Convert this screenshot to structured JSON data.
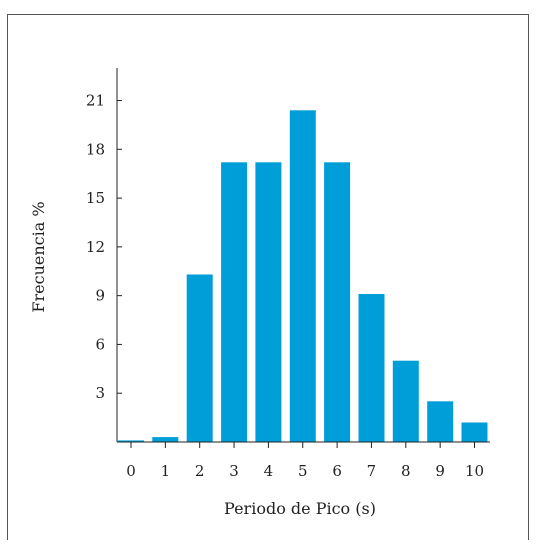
{
  "chart_data": {
    "type": "bar",
    "title": "",
    "xlabel": "Periodo de Pico (s)",
    "ylabel": "Frecuencia %",
    "x": [
      0,
      1,
      2,
      3,
      4,
      5,
      6,
      7,
      8,
      9,
      10
    ],
    "values": [
      0.1,
      0.3,
      10.3,
      17.2,
      17.2,
      20.4,
      17.2,
      9.1,
      5.0,
      2.5,
      1.2
    ],
    "xticks": [
      "0",
      "1",
      "2",
      "3",
      "4",
      "5",
      "6",
      "7",
      "8",
      "9",
      "10"
    ],
    "yticks": [
      "3",
      "6",
      "9",
      "12",
      "15",
      "18",
      "21"
    ],
    "ylim": [
      0,
      23
    ],
    "grid": false,
    "bar_color": "#009ed8",
    "axis_color": "#222222"
  }
}
